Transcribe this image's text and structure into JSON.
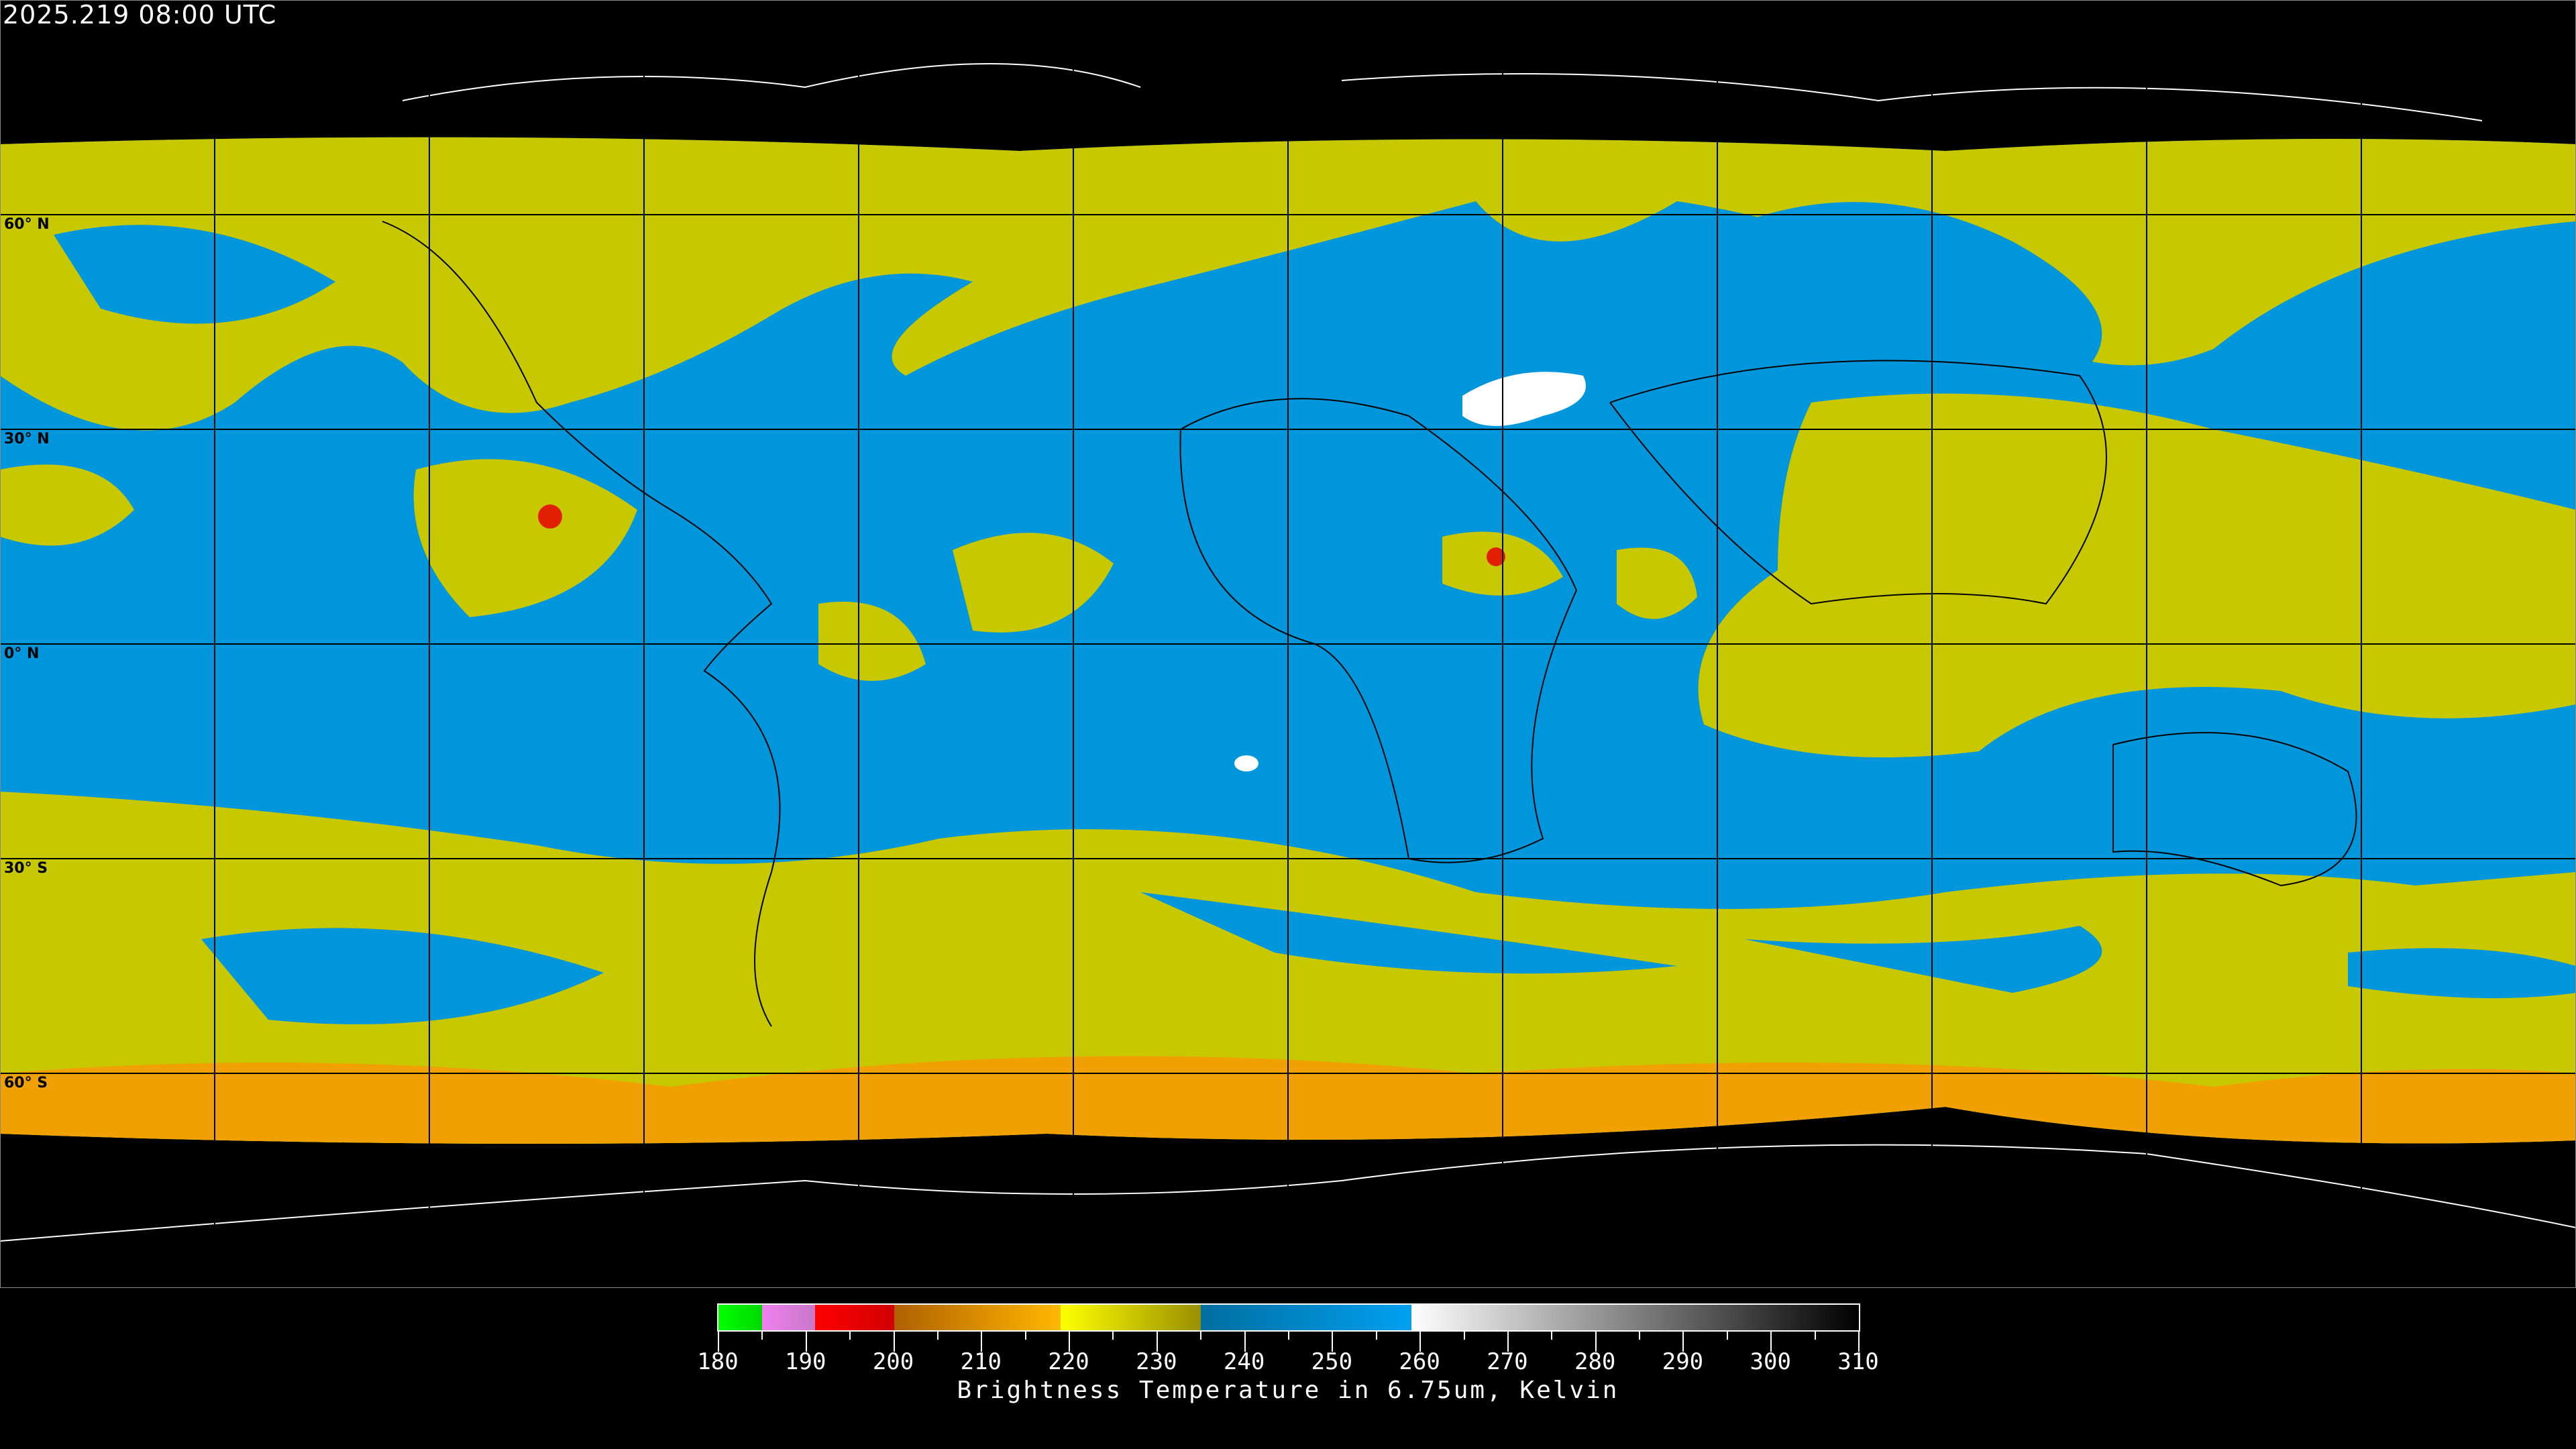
{
  "header": {
    "timestamp": "2025.219 08:00 UTC"
  },
  "map": {
    "projection": "equirectangular",
    "lat_labels": [
      "60° N",
      "30° N",
      "0° N",
      "30° S",
      "60° S"
    ],
    "grid_spacing_deg": 30,
    "colors": {
      "background": "#000000",
      "dry": "#0096dc",
      "moist": "#c8c800",
      "cold": "#f0a000",
      "coastline": "#000000",
      "coastline_outside": "#ffffff",
      "grid": "#000000"
    }
  },
  "colorbar": {
    "title": "Brightness Temperature in 6.75um, Kelvin",
    "tick_labels": [
      "180",
      "190",
      "200",
      "210",
      "220",
      "230",
      "240",
      "250",
      "260",
      "270",
      "280",
      "290",
      "300",
      "310"
    ],
    "range": [
      180,
      310
    ],
    "segments": [
      {
        "from": 180,
        "to": 185,
        "start": "#00ff00",
        "end": "#00d800"
      },
      {
        "from": 185,
        "to": 191,
        "start": "#f080f0",
        "end": "#c878c8"
      },
      {
        "from": 191,
        "to": 200,
        "start": "#ff0000",
        "end": "#d00000"
      },
      {
        "from": 200,
        "to": 219,
        "start": "#b06000",
        "end": "#ffb800"
      },
      {
        "from": 219,
        "to": 235,
        "start": "#ffff00",
        "end": "#989000"
      },
      {
        "from": 235,
        "to": 259,
        "start": "#006ea0",
        "end": "#00a0f0"
      },
      {
        "from": 259,
        "to": 310,
        "start": "#ffffff",
        "end": "#000000"
      }
    ]
  }
}
